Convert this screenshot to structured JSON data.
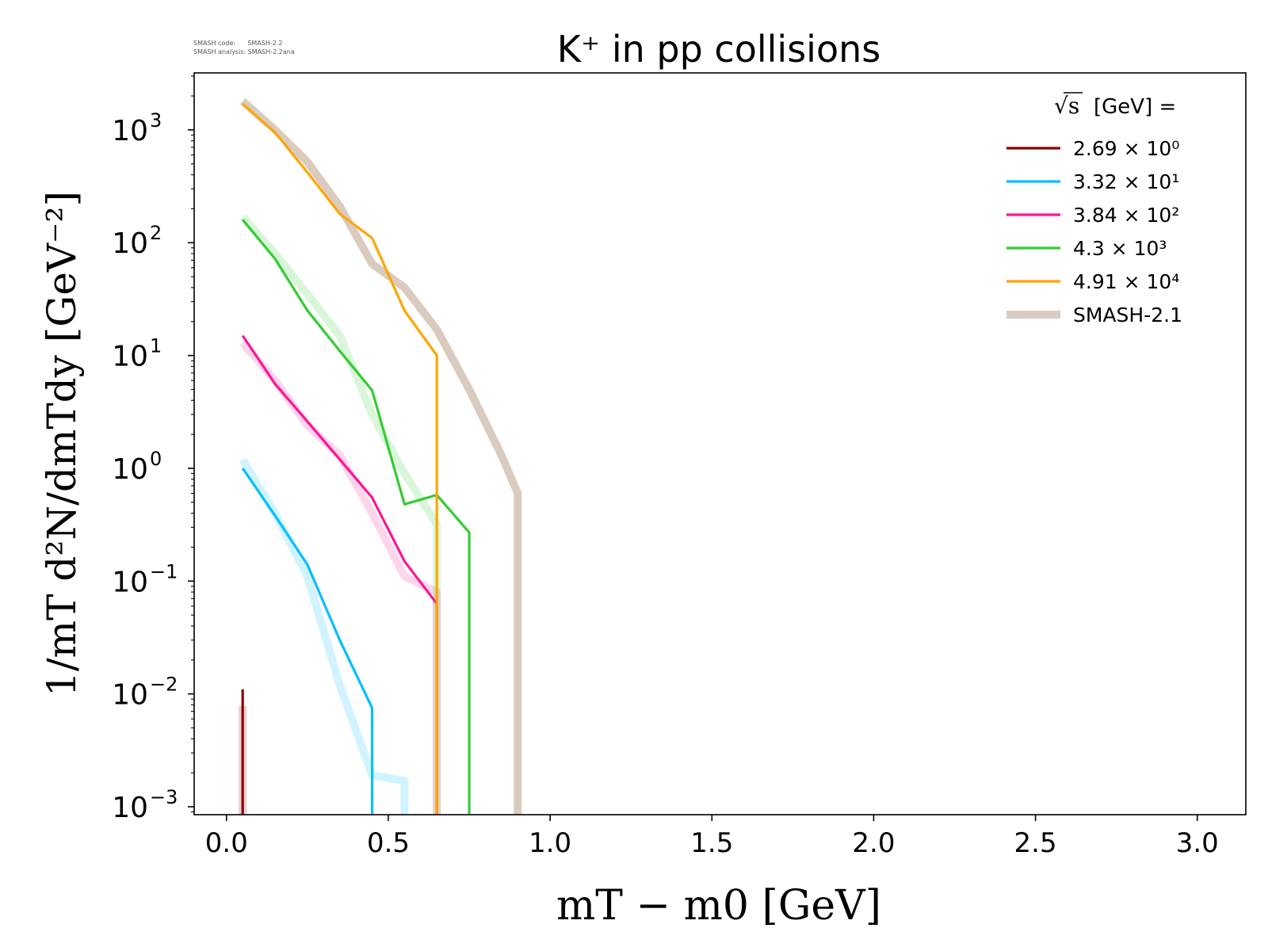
{
  "meta": {
    "line1": "SMASH code:      SMASH-2.2",
    "line2": "SMASH analysis: SMASH-2.2ana"
  },
  "chart_data": {
    "type": "line",
    "title": "K⁺ in pp collisions",
    "xlabel": "mT − m0 [GeV]",
    "ylabel": "1/mT d²N/dmTdy [GeV⁻²]",
    "yscale": "log",
    "xlim": [
      -0.1,
      3.15
    ],
    "ylim": [
      0.00085,
      3200
    ],
    "x_ticks": [
      {
        "v": 0.0,
        "label": "0.0"
      },
      {
        "v": 0.5,
        "label": "0.5"
      },
      {
        "v": 1.0,
        "label": "1.0"
      },
      {
        "v": 1.5,
        "label": "1.5"
      },
      {
        "v": 2.0,
        "label": "2.0"
      },
      {
        "v": 2.5,
        "label": "2.5"
      },
      {
        "v": 3.0,
        "label": "3.0"
      }
    ],
    "y_ticks": [
      {
        "v": 0.001,
        "base": "10",
        "exp": "−3"
      },
      {
        "v": 0.01,
        "base": "10",
        "exp": "−2"
      },
      {
        "v": 0.1,
        "base": "10",
        "exp": "−1"
      },
      {
        "v": 1,
        "base": "10",
        "exp": "0"
      },
      {
        "v": 10,
        "base": "10",
        "exp": "1"
      },
      {
        "v": 100,
        "base": "10",
        "exp": "2"
      },
      {
        "v": 1000,
        "base": "10",
        "exp": "3"
      }
    ],
    "grid": false,
    "legend": {
      "placement": "top-right",
      "title_prefix": "√s",
      "title_suffix": "[GeV] ="
    },
    "series": [
      {
        "name": "2.69 × 10⁰",
        "color": "#8b0000",
        "x": [
          0.05,
          0.05
        ],
        "y": [
          0.00085,
          0.011
        ]
      },
      {
        "name": "3.32 × 10¹",
        "color": "#00bfff",
        "x": [
          0.05,
          0.15,
          0.25,
          0.35,
          0.45,
          0.45
        ],
        "y": [
          1.0,
          0.38,
          0.14,
          0.03,
          0.0075,
          0.00085
        ]
      },
      {
        "name": "3.84 × 10²",
        "color": "#ff1493",
        "x": [
          0.05,
          0.15,
          0.25,
          0.35,
          0.45,
          0.55,
          0.65,
          0.65
        ],
        "y": [
          15,
          5.6,
          2.6,
          1.2,
          0.55,
          0.15,
          0.063,
          0.00085
        ]
      },
      {
        "name": "4.3 × 10³",
        "color": "#32cd32",
        "x": [
          0.05,
          0.15,
          0.25,
          0.35,
          0.45,
          0.55,
          0.65,
          0.75,
          0.75
        ],
        "y": [
          160,
          72,
          25,
          11,
          4.9,
          0.48,
          0.58,
          0.27,
          0.00085
        ]
      },
      {
        "name": "4.91 × 10⁴",
        "color": "#ffa500",
        "x": [
          0.05,
          0.15,
          0.25,
          0.35,
          0.45,
          0.55,
          0.65,
          0.65
        ],
        "y": [
          1700,
          950,
          420,
          180,
          110,
          25,
          10,
          0.00085
        ]
      }
    ],
    "reference": {
      "name": "SMASH-2.1",
      "color": "#d8ccc4",
      "curves": [
        {
          "color": "#8b0000",
          "x": [
            0.05,
            0.05
          ],
          "y": [
            0.00085,
            0.0078
          ]
        },
        {
          "color": "#00bfff",
          "x": [
            0.05,
            0.15,
            0.25,
            0.35,
            0.45,
            0.55,
            0.55
          ],
          "y": [
            1.2,
            0.4,
            0.11,
            0.012,
            0.0019,
            0.0017,
            0.00085
          ]
        },
        {
          "color": "#ff1493",
          "x": [
            0.05,
            0.15,
            0.25,
            0.35,
            0.45,
            0.55,
            0.65,
            0.65
          ],
          "y": [
            13,
            6.0,
            2.4,
            1.3,
            0.4,
            0.11,
            0.08,
            0.00085
          ]
        },
        {
          "color": "#32cd32",
          "x": [
            0.05,
            0.15,
            0.25,
            0.35,
            0.45,
            0.55,
            0.65,
            0.65
          ],
          "y": [
            170,
            80,
            35,
            15,
            3.0,
            0.9,
            0.32,
            0.00085
          ]
        },
        {
          "color": "#bba08a",
          "x": [
            0.05,
            0.15,
            0.25,
            0.35,
            0.45,
            0.55,
            0.65,
            0.75,
            0.85,
            0.9,
            0.9
          ],
          "y": [
            1800,
            1000,
            520,
            210,
            65,
            40,
            17,
            5.0,
            1.3,
            0.6,
            0.00085
          ]
        }
      ]
    }
  }
}
